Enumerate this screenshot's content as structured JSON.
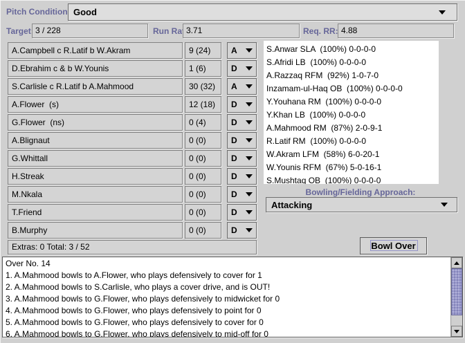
{
  "pitch": {
    "label": "Pitch Condition:",
    "value": "Good"
  },
  "stats": {
    "target_label": "Target:",
    "target_value": "3 / 228",
    "run_rate_label": "Run Rate:",
    "run_rate_value": "3.71",
    "req_rr_label": "Req. RR:",
    "req_rr_value": "4.88"
  },
  "batting": {
    "rows": [
      {
        "name": "A.Campbell c R.Latif b W.Akram",
        "score": "9 (24)",
        "approach": "A"
      },
      {
        "name": "D.Ebrahim c & b W.Younis",
        "score": "1 (6)",
        "approach": "D"
      },
      {
        "name": "S.Carlisle c R.Latif b A.Mahmood",
        "score": "30 (32)",
        "approach": "A"
      },
      {
        "name": "A.Flower  (s)",
        "score": "12 (18)",
        "approach": "D"
      },
      {
        "name": "G.Flower  (ns)",
        "score": "0 (4)",
        "approach": "D"
      },
      {
        "name": "A.Blignaut",
        "score": "0 (0)",
        "approach": "D"
      },
      {
        "name": "G.Whittall",
        "score": "0 (0)",
        "approach": "D"
      },
      {
        "name": "H.Streak",
        "score": "0 (0)",
        "approach": "D"
      },
      {
        "name": "M.Nkala",
        "score": "0 (0)",
        "approach": "D"
      },
      {
        "name": "T.Friend",
        "score": "0 (0)",
        "approach": "D"
      },
      {
        "name": "B.Murphy",
        "score": "0 (0)",
        "approach": "D"
      }
    ],
    "footer": "Extras: 0 Total: 3 / 52"
  },
  "bowlers": [
    "S.Anwar SLA  (100%) 0-0-0-0",
    "S.Afridi LB  (100%) 0-0-0-0",
    "A.Razzaq RFM  (92%) 1-0-7-0",
    "Inzamam-ul-Haq OB  (100%) 0-0-0-0",
    "Y.Youhana RM  (100%) 0-0-0-0",
    "Y.Khan LB  (100%) 0-0-0-0",
    "A.Mahmood RM  (87%) 2-0-9-1",
    "R.Latif RM  (100%) 0-0-0-0",
    "W.Akram LFM  (58%) 6-0-20-1",
    "W.Younis RFM  (67%) 5-0-16-1",
    "S.Mushtaq OB  (100%) 0-0-0-0"
  ],
  "approach": {
    "label": "Bowling/Fielding Approach:",
    "value": "Attacking"
  },
  "actions": {
    "bowl_over": "Bowl Over"
  },
  "commentary": [
    "Over No. 14",
    "1. A.Mahmood bowls to A.Flower, who plays defensively to cover for 1",
    "2. A.Mahmood bowls to S.Carlisle, who plays a cover drive, and is OUT!",
    "3. A.Mahmood bowls to G.Flower, who plays defensively to midwicket for 0",
    "4. A.Mahmood bowls to G.Flower, who plays defensively to point for 0",
    "5. A.Mahmood bowls to G.Flower, who plays defensively to cover for 0",
    "6. A.Mahmood bowls to G.Flower, who plays defensively to mid-off for 0"
  ],
  "icons": {
    "combo_arrow": "chevron-down-icon",
    "scroll_up": "chevron-up-icon",
    "scroll_down": "chevron-down-icon"
  },
  "colors": {
    "label_accent": "#666699",
    "panel_bg": "#d0d0d0",
    "list_bg": "#ffffff",
    "scroll_thumb": "#9999cc"
  }
}
